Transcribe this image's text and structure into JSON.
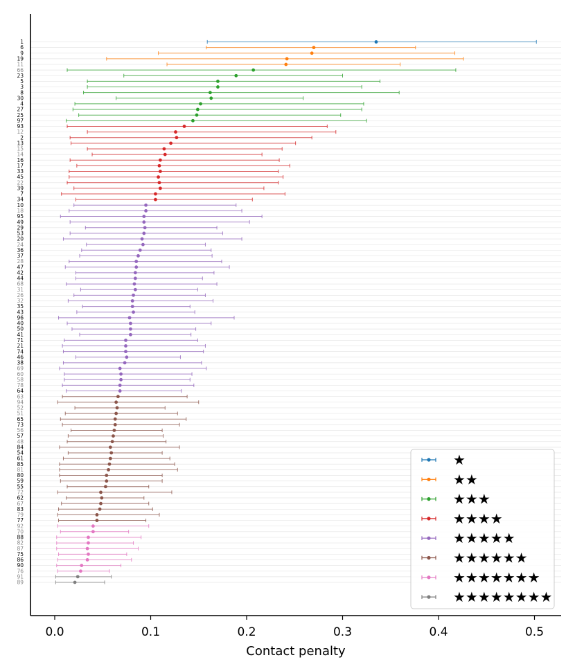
{
  "chart_data": {
    "type": "errorbar",
    "xlabel": "Contact penalty",
    "xlim": [
      -0.025,
      0.53
    ],
    "xticks": [
      0.0,
      0.1,
      0.2,
      0.3,
      0.4,
      0.5
    ],
    "xtick_labels": [
      "0.0",
      "0.1",
      "0.2",
      "0.3",
      "0.4",
      "0.5"
    ],
    "legend_position": "lower-right",
    "grid": "horizontal-light",
    "groups": [
      {
        "label": "★",
        "color": "#1f77b4"
      },
      {
        "label": "★★",
        "color": "#ff7f0e"
      },
      {
        "label": "★★★",
        "color": "#2ca02c"
      },
      {
        "label": "★★★★",
        "color": "#d62728"
      },
      {
        "label": "★★★★★",
        "color": "#9467bd"
      },
      {
        "label": "★★★★★★",
        "color": "#8c564b"
      },
      {
        "label": "★★★★★★★",
        "color": "#e377c2"
      },
      {
        "label": "★★★★★★★★",
        "color": "#7f7f7f"
      }
    ],
    "rows": [
      {
        "id": "1",
        "group": 0,
        "value": 0.335,
        "low": 0.159,
        "high": 0.502,
        "bold": true
      },
      {
        "id": "6",
        "group": 1,
        "value": 0.27,
        "low": 0.158,
        "high": 0.376,
        "bold": true
      },
      {
        "id": "9",
        "group": 1,
        "value": 0.268,
        "low": 0.108,
        "high": 0.417,
        "bold": true
      },
      {
        "id": "19",
        "group": 1,
        "value": 0.242,
        "low": 0.054,
        "high": 0.426,
        "bold": true
      },
      {
        "id": "11",
        "group": 1,
        "value": 0.241,
        "low": 0.117,
        "high": 0.36,
        "bold": false
      },
      {
        "id": "66",
        "group": 2,
        "value": 0.207,
        "low": 0.013,
        "high": 0.418,
        "bold": false
      },
      {
        "id": "23",
        "group": 2,
        "value": 0.189,
        "low": 0.072,
        "high": 0.3,
        "bold": true
      },
      {
        "id": "5",
        "group": 2,
        "value": 0.17,
        "low": 0.034,
        "high": 0.339,
        "bold": true
      },
      {
        "id": "3",
        "group": 2,
        "value": 0.17,
        "low": 0.034,
        "high": 0.32,
        "bold": true
      },
      {
        "id": "8",
        "group": 2,
        "value": 0.162,
        "low": 0.03,
        "high": 0.359,
        "bold": true
      },
      {
        "id": "30",
        "group": 2,
        "value": 0.163,
        "low": 0.064,
        "high": 0.259,
        "bold": true
      },
      {
        "id": "4",
        "group": 2,
        "value": 0.152,
        "low": 0.021,
        "high": 0.322,
        "bold": true
      },
      {
        "id": "27",
        "group": 2,
        "value": 0.149,
        "low": 0.019,
        "high": 0.32,
        "bold": true
      },
      {
        "id": "25",
        "group": 2,
        "value": 0.148,
        "low": 0.025,
        "high": 0.298,
        "bold": true
      },
      {
        "id": "97",
        "group": 2,
        "value": 0.144,
        "low": 0.012,
        "high": 0.325,
        "bold": true
      },
      {
        "id": "93",
        "group": 3,
        "value": 0.135,
        "low": 0.013,
        "high": 0.284,
        "bold": true
      },
      {
        "id": "12",
        "group": 3,
        "value": 0.126,
        "low": 0.034,
        "high": 0.293,
        "bold": false
      },
      {
        "id": "2",
        "group": 3,
        "value": 0.127,
        "low": 0.016,
        "high": 0.268,
        "bold": true
      },
      {
        "id": "13",
        "group": 3,
        "value": 0.121,
        "low": 0.017,
        "high": 0.251,
        "bold": true
      },
      {
        "id": "15",
        "group": 3,
        "value": 0.114,
        "low": 0.034,
        "high": 0.237,
        "bold": false
      },
      {
        "id": "14",
        "group": 3,
        "value": 0.115,
        "low": 0.039,
        "high": 0.216,
        "bold": false
      },
      {
        "id": "16",
        "group": 3,
        "value": 0.11,
        "low": 0.016,
        "high": 0.234,
        "bold": true
      },
      {
        "id": "17",
        "group": 3,
        "value": 0.109,
        "low": 0.023,
        "high": 0.245,
        "bold": true
      },
      {
        "id": "33",
        "group": 3,
        "value": 0.11,
        "low": 0.015,
        "high": 0.233,
        "bold": true
      },
      {
        "id": "45",
        "group": 3,
        "value": 0.108,
        "low": 0.015,
        "high": 0.238,
        "bold": true
      },
      {
        "id": "22",
        "group": 3,
        "value": 0.109,
        "low": 0.013,
        "high": 0.233,
        "bold": false
      },
      {
        "id": "39",
        "group": 3,
        "value": 0.11,
        "low": 0.02,
        "high": 0.218,
        "bold": true
      },
      {
        "id": "7",
        "group": 3,
        "value": 0.105,
        "low": 0.007,
        "high": 0.24,
        "bold": true
      },
      {
        "id": "34",
        "group": 3,
        "value": 0.105,
        "low": 0.022,
        "high": 0.206,
        "bold": true
      },
      {
        "id": "10",
        "group": 4,
        "value": 0.095,
        "low": 0.02,
        "high": 0.189,
        "bold": true
      },
      {
        "id": "18",
        "group": 4,
        "value": 0.095,
        "low": 0.015,
        "high": 0.195,
        "bold": false
      },
      {
        "id": "95",
        "group": 4,
        "value": 0.093,
        "low": 0.006,
        "high": 0.216,
        "bold": true
      },
      {
        "id": "49",
        "group": 4,
        "value": 0.093,
        "low": 0.016,
        "high": 0.203,
        "bold": true
      },
      {
        "id": "29",
        "group": 4,
        "value": 0.094,
        "low": 0.032,
        "high": 0.169,
        "bold": true
      },
      {
        "id": "53",
        "group": 4,
        "value": 0.093,
        "low": 0.016,
        "high": 0.175,
        "bold": true
      },
      {
        "id": "20",
        "group": 4,
        "value": 0.091,
        "low": 0.009,
        "high": 0.195,
        "bold": true
      },
      {
        "id": "24",
        "group": 4,
        "value": 0.092,
        "low": 0.033,
        "high": 0.157,
        "bold": false
      },
      {
        "id": "36",
        "group": 4,
        "value": 0.089,
        "low": 0.028,
        "high": 0.163,
        "bold": true
      },
      {
        "id": "37",
        "group": 4,
        "value": 0.087,
        "low": 0.026,
        "high": 0.164,
        "bold": true
      },
      {
        "id": "28",
        "group": 4,
        "value": 0.085,
        "low": 0.015,
        "high": 0.174,
        "bold": false
      },
      {
        "id": "47",
        "group": 4,
        "value": 0.085,
        "low": 0.011,
        "high": 0.182,
        "bold": true
      },
      {
        "id": "42",
        "group": 4,
        "value": 0.084,
        "low": 0.022,
        "high": 0.166,
        "bold": true
      },
      {
        "id": "44",
        "group": 4,
        "value": 0.084,
        "low": 0.022,
        "high": 0.154,
        "bold": true
      },
      {
        "id": "68",
        "group": 4,
        "value": 0.083,
        "low": 0.012,
        "high": 0.169,
        "bold": false
      },
      {
        "id": "31",
        "group": 4,
        "value": 0.084,
        "low": 0.027,
        "high": 0.149,
        "bold": false
      },
      {
        "id": "26",
        "group": 4,
        "value": 0.082,
        "low": 0.02,
        "high": 0.157,
        "bold": false
      },
      {
        "id": "32",
        "group": 4,
        "value": 0.081,
        "low": 0.014,
        "high": 0.165,
        "bold": false
      },
      {
        "id": "35",
        "group": 4,
        "value": 0.081,
        "low": 0.029,
        "high": 0.141,
        "bold": true
      },
      {
        "id": "43",
        "group": 4,
        "value": 0.082,
        "low": 0.023,
        "high": 0.146,
        "bold": true
      },
      {
        "id": "96",
        "group": 4,
        "value": 0.078,
        "low": 0.004,
        "high": 0.187,
        "bold": true
      },
      {
        "id": "40",
        "group": 4,
        "value": 0.079,
        "low": 0.013,
        "high": 0.163,
        "bold": true
      },
      {
        "id": "50",
        "group": 4,
        "value": 0.079,
        "low": 0.018,
        "high": 0.147,
        "bold": true
      },
      {
        "id": "41",
        "group": 4,
        "value": 0.079,
        "low": 0.026,
        "high": 0.142,
        "bold": true
      },
      {
        "id": "71",
        "group": 4,
        "value": 0.074,
        "low": 0.01,
        "high": 0.149,
        "bold": true
      },
      {
        "id": "21",
        "group": 4,
        "value": 0.074,
        "low": 0.008,
        "high": 0.157,
        "bold": true
      },
      {
        "id": "74",
        "group": 4,
        "value": 0.074,
        "low": 0.009,
        "high": 0.155,
        "bold": true
      },
      {
        "id": "46",
        "group": 4,
        "value": 0.075,
        "low": 0.022,
        "high": 0.131,
        "bold": true
      },
      {
        "id": "38",
        "group": 4,
        "value": 0.073,
        "low": 0.009,
        "high": 0.153,
        "bold": true
      },
      {
        "id": "69",
        "group": 4,
        "value": 0.068,
        "low": 0.005,
        "high": 0.158,
        "bold": false
      },
      {
        "id": "60",
        "group": 4,
        "value": 0.069,
        "low": 0.01,
        "high": 0.143,
        "bold": false
      },
      {
        "id": "58",
        "group": 4,
        "value": 0.069,
        "low": 0.01,
        "high": 0.141,
        "bold": false
      },
      {
        "id": "78",
        "group": 4,
        "value": 0.068,
        "low": 0.008,
        "high": 0.145,
        "bold": false
      },
      {
        "id": "64",
        "group": 4,
        "value": 0.068,
        "low": 0.012,
        "high": 0.132,
        "bold": true
      },
      {
        "id": "63",
        "group": 5,
        "value": 0.066,
        "low": 0.008,
        "high": 0.138,
        "bold": false
      },
      {
        "id": "94",
        "group": 5,
        "value": 0.064,
        "low": 0.003,
        "high": 0.15,
        "bold": false
      },
      {
        "id": "52",
        "group": 5,
        "value": 0.065,
        "low": 0.021,
        "high": 0.115,
        "bold": false
      },
      {
        "id": "51",
        "group": 5,
        "value": 0.064,
        "low": 0.011,
        "high": 0.128,
        "bold": false
      },
      {
        "id": "65",
        "group": 5,
        "value": 0.063,
        "low": 0.006,
        "high": 0.137,
        "bold": true
      },
      {
        "id": "73",
        "group": 5,
        "value": 0.063,
        "low": 0.008,
        "high": 0.13,
        "bold": true
      },
      {
        "id": "56",
        "group": 5,
        "value": 0.062,
        "low": 0.017,
        "high": 0.112,
        "bold": false
      },
      {
        "id": "57",
        "group": 5,
        "value": 0.061,
        "low": 0.014,
        "high": 0.113,
        "bold": true
      },
      {
        "id": "48",
        "group": 5,
        "value": 0.06,
        "low": 0.013,
        "high": 0.116,
        "bold": false
      },
      {
        "id": "84",
        "group": 5,
        "value": 0.058,
        "low": 0.005,
        "high": 0.13,
        "bold": true
      },
      {
        "id": "54",
        "group": 5,
        "value": 0.059,
        "low": 0.014,
        "high": 0.112,
        "bold": true
      },
      {
        "id": "61",
        "group": 5,
        "value": 0.058,
        "low": 0.009,
        "high": 0.12,
        "bold": true
      },
      {
        "id": "85",
        "group": 5,
        "value": 0.057,
        "low": 0.005,
        "high": 0.125,
        "bold": true
      },
      {
        "id": "81",
        "group": 5,
        "value": 0.056,
        "low": 0.005,
        "high": 0.128,
        "bold": false
      },
      {
        "id": "80",
        "group": 5,
        "value": 0.054,
        "low": 0.005,
        "high": 0.112,
        "bold": true
      },
      {
        "id": "59",
        "group": 5,
        "value": 0.054,
        "low": 0.006,
        "high": 0.112,
        "bold": true
      },
      {
        "id": "55",
        "group": 5,
        "value": 0.053,
        "low": 0.013,
        "high": 0.098,
        "bold": true
      },
      {
        "id": "72",
        "group": 5,
        "value": 0.048,
        "low": 0.003,
        "high": 0.122,
        "bold": false
      },
      {
        "id": "62",
        "group": 5,
        "value": 0.049,
        "low": 0.012,
        "high": 0.093,
        "bold": true
      },
      {
        "id": "67",
        "group": 5,
        "value": 0.048,
        "low": 0.007,
        "high": 0.098,
        "bold": false
      },
      {
        "id": "83",
        "group": 5,
        "value": 0.047,
        "low": 0.004,
        "high": 0.102,
        "bold": true
      },
      {
        "id": "79",
        "group": 5,
        "value": 0.044,
        "low": 0.003,
        "high": 0.109,
        "bold": false
      },
      {
        "id": "77",
        "group": 5,
        "value": 0.044,
        "low": 0.004,
        "high": 0.095,
        "bold": true
      },
      {
        "id": "92",
        "group": 6,
        "value": 0.04,
        "low": 0.003,
        "high": 0.098,
        "bold": false
      },
      {
        "id": "70",
        "group": 6,
        "value": 0.04,
        "low": 0.006,
        "high": 0.077,
        "bold": false
      },
      {
        "id": "88",
        "group": 6,
        "value": 0.035,
        "low": 0.002,
        "high": 0.09,
        "bold": true
      },
      {
        "id": "82",
        "group": 6,
        "value": 0.035,
        "low": 0.002,
        "high": 0.082,
        "bold": false
      },
      {
        "id": "87",
        "group": 6,
        "value": 0.034,
        "low": 0.002,
        "high": 0.087,
        "bold": false
      },
      {
        "id": "75",
        "group": 6,
        "value": 0.035,
        "low": 0.004,
        "high": 0.075,
        "bold": true
      },
      {
        "id": "86",
        "group": 6,
        "value": 0.034,
        "low": 0.003,
        "high": 0.08,
        "bold": true
      },
      {
        "id": "90",
        "group": 6,
        "value": 0.028,
        "low": 0.002,
        "high": 0.069,
        "bold": true
      },
      {
        "id": "76",
        "group": 6,
        "value": 0.027,
        "low": 0.003,
        "high": 0.057,
        "bold": false
      },
      {
        "id": "91",
        "group": 7,
        "value": 0.024,
        "low": 0.001,
        "high": 0.059,
        "bold": false
      },
      {
        "id": "89",
        "group": 7,
        "value": 0.021,
        "low": 0.001,
        "high": 0.052,
        "bold": false
      }
    ]
  }
}
